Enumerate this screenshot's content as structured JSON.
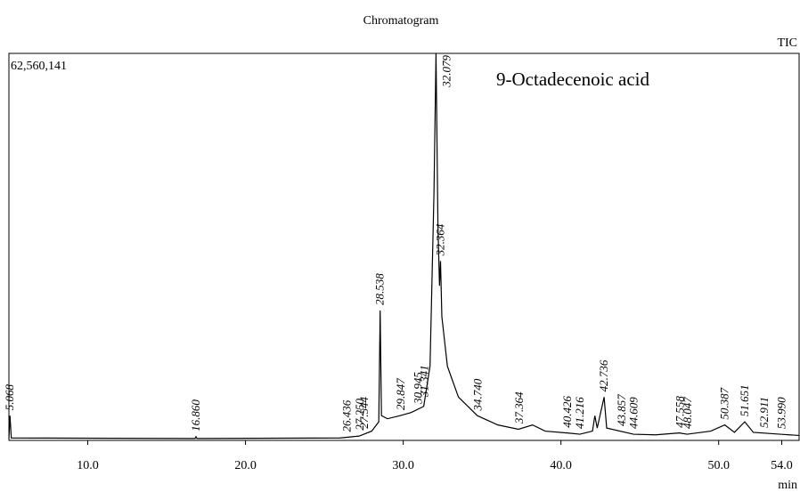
{
  "chart_data": {
    "type": "line",
    "title": "Chromatogram",
    "trace_label": "TIC",
    "annotation": "9-Octadecenoic acid",
    "xlabel": "min",
    "color": "#000000",
    "xlim": [
      5.0,
      55.1
    ],
    "xticks": [
      {
        "value": 10,
        "label": "10.0"
      },
      {
        "value": 20,
        "label": "20.0"
      },
      {
        "value": 30,
        "label": "30.0"
      },
      {
        "value": 40,
        "label": "40.0"
      },
      {
        "value": 50,
        "label": "50.0"
      },
      {
        "value": 54,
        "label": "54.0"
      }
    ],
    "ylim": [
      0,
      62560141
    ],
    "yticks": [
      {
        "value": 62560141,
        "label": "62,560,141"
      }
    ],
    "x": [
      5.0,
      5.068,
      5.15,
      16.8,
      16.86,
      16.92,
      26.0,
      27.2,
      28.0,
      28.45,
      28.538,
      28.62,
      29.0,
      29.8,
      30.5,
      31.3,
      31.7,
      31.95,
      32.079,
      32.2,
      32.3,
      32.364,
      32.45,
      32.8,
      33.5,
      34.7,
      36.0,
      37.3,
      38.2,
      39.0,
      40.4,
      41.2,
      42.0,
      42.15,
      42.3,
      42.736,
      42.9,
      44.6,
      46.0,
      47.5,
      48.0,
      49.5,
      50.387,
      51.0,
      51.651,
      52.2,
      53.9,
      55.1
    ],
    "values": [
      300000,
      4000000,
      400000,
      300000,
      600000,
      300000,
      400000,
      700000,
      1500000,
      3000000,
      21000000,
      4000000,
      3500000,
      4000000,
      4500000,
      5500000,
      12000000,
      40000000,
      62560141,
      35000000,
      25000000,
      29000000,
      20000000,
      12000000,
      7000000,
      4000000,
      2500000,
      1800000,
      2500000,
      1500000,
      1200000,
      1000000,
      1500000,
      4000000,
      2000000,
      7000000,
      2000000,
      1000000,
      900000,
      1200000,
      1000000,
      1500000,
      2500000,
      1300000,
      3000000,
      1300000,
      1000000,
      800000
    ],
    "peak_times": [
      5.068,
      {
        "value": 16.86,
        "label": "16.860"
      },
      26.436,
      {
        "value": 27.25,
        "label": "27.250"
      },
      27.544,
      28.538,
      29.847,
      30.945,
      31.341,
      32.079,
      32.364,
      {
        "value": 34.74,
        "label": "34.740"
      },
      37.364,
      40.426,
      41.216,
      42.736,
      43.857,
      44.609,
      47.558,
      48.047,
      50.387,
      51.651,
      52.911,
      {
        "value": 53.99,
        "label": "53.990"
      }
    ]
  }
}
